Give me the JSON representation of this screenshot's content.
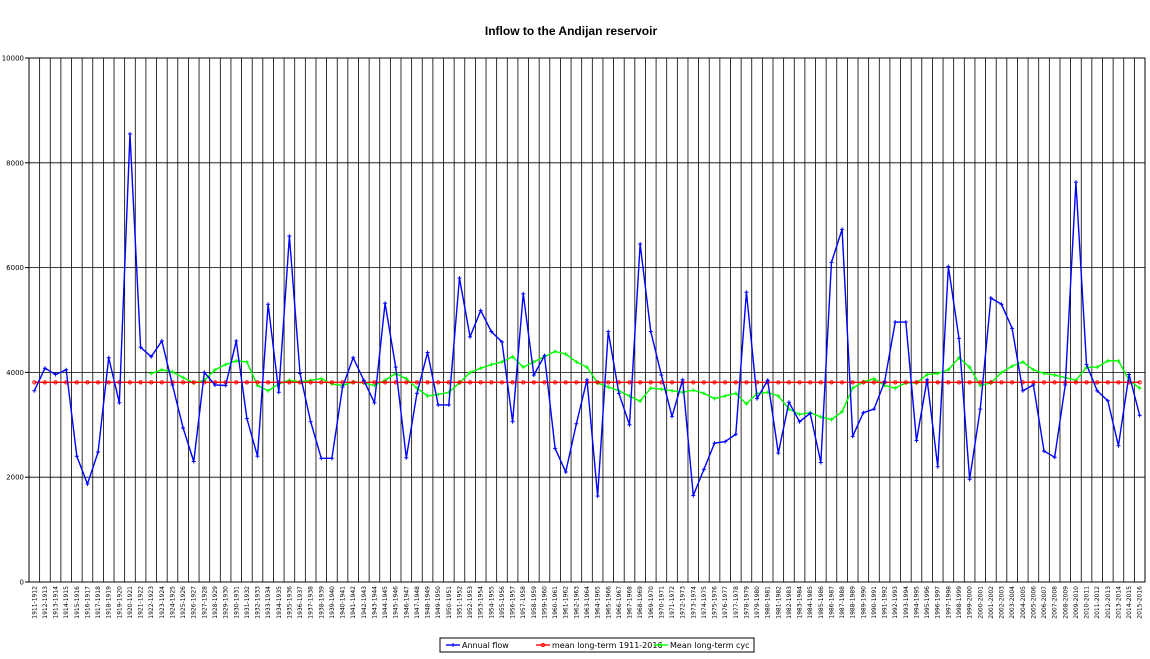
{
  "chart_data": {
    "type": "line",
    "title": "Inflow to the Andijan reservoir",
    "xlabel": "",
    "ylabel": "",
    "ylim": [
      0,
      10000
    ],
    "yticks": [
      0,
      2000,
      4000,
      6000,
      8000,
      10000
    ],
    "grid": true,
    "legend_position": "bottom",
    "categories": [
      "1911-1912",
      "1912-1913",
      "1913-1914",
      "1914-1915",
      "1915-1916",
      "1916-1917",
      "1917-1918",
      "1918-1919",
      "1919-1920",
      "1920-1921",
      "1921-1922",
      "1922-1923",
      "1923-1924",
      "1924-1925",
      "1925-1926",
      "1926-1927",
      "1927-1928",
      "1928-1929",
      "1929-1930",
      "1930-1931",
      "1931-1932",
      "1932-1933",
      "1933-1934",
      "1934-1935",
      "1935-1936",
      "1936-1937",
      "1937-1938",
      "1938-1939",
      "1939-1940",
      "1940-1941",
      "1941-1942",
      "1942-1943",
      "1943-1944",
      "1944-1945",
      "1945-1946",
      "1946-1947",
      "1947-1948",
      "1948-1949",
      "1949-1950",
      "1950-1951",
      "1951-1952",
      "1952-1953",
      "1953-1954",
      "1954-1955",
      "1955-1956",
      "1956-1957",
      "1957-1958",
      "1958-1959",
      "1959-1960",
      "1960-1961",
      "1961-1962",
      "1962-1963",
      "1963-1964",
      "1964-1965",
      "1965-1966",
      "1966-1967",
      "1967-1968",
      "1968-1969",
      "1969-1970",
      "1970-1971",
      "1971-1972",
      "1972-1973",
      "1973-1974",
      "1974-1975",
      "1975-1976",
      "1976-1977",
      "1977-1978",
      "1978-1979",
      "1979-1980",
      "1980-1981",
      "1981-1982",
      "1982-1983",
      "1983-1984",
      "1984-1985",
      "1985-1986",
      "1986-1987",
      "1987-1988",
      "1988-1989",
      "1989-1990",
      "1990-1991",
      "1991-1992",
      "1992-1993",
      "1993-1994",
      "1994-1995",
      "1995-1996",
      "1996-1997",
      "1997-1998",
      "1998-1999",
      "1999-2000",
      "2000-2001",
      "2001-2002",
      "2002-2003",
      "2003-2004",
      "2004-2005",
      "2005-2006",
      "2006-2007",
      "2007-2008",
      "2008-2009",
      "2009-2010",
      "2010-2011",
      "2011-2012",
      "2012-2013",
      "2013-2014",
      "2014-2015",
      "2015-2016"
    ],
    "series": [
      {
        "name": "Annual flow",
        "color": "#0000ff",
        "marker": "plus",
        "values": [
          3650,
          4080,
          3960,
          4050,
          2400,
          1870,
          2480,
          4280,
          3420,
          8550,
          4480,
          4300,
          4600,
          3760,
          2940,
          2300,
          4000,
          3760,
          3750,
          4600,
          3120,
          2400,
          5300,
          3620,
          6600,
          3980,
          3060,
          2360,
          2360,
          3720,
          4280,
          3850,
          3420,
          5320,
          4100,
          2370,
          3600,
          4380,
          3380,
          3380,
          5800,
          4680,
          5180,
          4780,
          4580,
          3060,
          5500,
          3950,
          4320,
          2550,
          2100,
          3020,
          3860,
          1640,
          4780,
          3600,
          3000,
          6450,
          4780,
          3950,
          3160,
          3860,
          1650,
          2150,
          2650,
          2680,
          2820,
          5530,
          3500,
          3850,
          2460,
          3430,
          3060,
          3220,
          2280,
          6100,
          6730,
          2780,
          3230,
          3300,
          3820,
          4960,
          4960,
          2700,
          3860,
          2200,
          6020,
          4650,
          1960,
          3300,
          5420,
          5300,
          4840,
          3650,
          3760,
          2500,
          2380,
          3760,
          7630,
          4150,
          3650,
          3460,
          2600,
          3960,
          3180
        ]
      },
      {
        "name": "mean long-term 1911-2016",
        "color": "#ff0000",
        "marker": "circle",
        "values": [
          3810,
          3810,
          3810,
          3810,
          3810,
          3810,
          3810,
          3810,
          3810,
          3810,
          3810,
          3810,
          3810,
          3810,
          3810,
          3810,
          3810,
          3810,
          3810,
          3810,
          3810,
          3810,
          3810,
          3810,
          3810,
          3810,
          3810,
          3810,
          3810,
          3810,
          3810,
          3810,
          3810,
          3810,
          3810,
          3810,
          3810,
          3810,
          3810,
          3810,
          3810,
          3810,
          3810,
          3810,
          3810,
          3810,
          3810,
          3810,
          3810,
          3810,
          3810,
          3810,
          3810,
          3810,
          3810,
          3810,
          3810,
          3810,
          3810,
          3810,
          3810,
          3810,
          3810,
          3810,
          3810,
          3810,
          3810,
          3810,
          3810,
          3810,
          3810,
          3810,
          3810,
          3810,
          3810,
          3810,
          3810,
          3810,
          3810,
          3810,
          3810,
          3810,
          3810,
          3810,
          3810,
          3810,
          3810,
          3810,
          3810,
          3810,
          3810,
          3810,
          3810,
          3810,
          3810,
          3810,
          3810,
          3810,
          3810,
          3810,
          3810,
          3810,
          3810,
          3810,
          3810
        ]
      },
      {
        "name": "Mean long-term cyc",
        "color": "#00ff00",
        "marker": "plus",
        "values": [
          null,
          null,
          null,
          null,
          null,
          null,
          null,
          null,
          null,
          null,
          null,
          3980,
          4050,
          4010,
          3900,
          3800,
          3850,
          4050,
          4150,
          4220,
          4200,
          3750,
          3650,
          3780,
          3850,
          3820,
          3850,
          3880,
          3780,
          3750,
          3820,
          3800,
          3750,
          3850,
          3980,
          3880,
          3700,
          3550,
          3580,
          3620,
          3800,
          4000,
          4080,
          4150,
          4200,
          4300,
          4100,
          4200,
          4300,
          4400,
          4350,
          4200,
          4100,
          3800,
          3720,
          3650,
          3550,
          3450,
          3700,
          3680,
          3650,
          3620,
          3660,
          3600,
          3500,
          3550,
          3600,
          3400,
          3600,
          3620,
          3550,
          3300,
          3200,
          3230,
          3150,
          3100,
          3250,
          3700,
          3820,
          3880,
          3750,
          3700,
          3800,
          3800,
          3960,
          3980,
          4050,
          4280,
          4100,
          3750,
          3800,
          4000,
          4120,
          4200,
          4050,
          3980,
          3950,
          3900,
          3850,
          4100,
          4100,
          4220,
          4220,
          3850,
          3700
        ]
      }
    ]
  }
}
